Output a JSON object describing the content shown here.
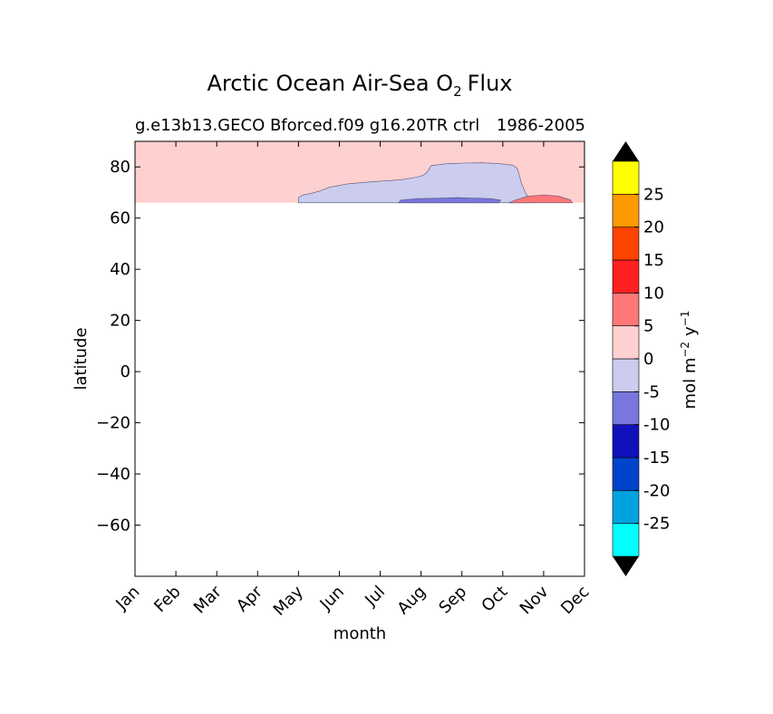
{
  "chart_data": {
    "type": "heatmap",
    "plot_kind": "filled contour",
    "title_main": "Arctic Ocean Air-Sea O",
    "title_sub": "2",
    "title_end": "Flux",
    "subtitle_left": "g.e13b13.GECO Bforced.f09 g16.20TR ctrl",
    "subtitle_right": "1986-2005",
    "xlabel": "month",
    "ylabel": "latitude",
    "x_categories": [
      "Jan",
      "Feb",
      "Mar",
      "Apr",
      "May",
      "Jun",
      "Jul",
      "Aug",
      "Sep",
      "Oct",
      "Nov",
      "Dec"
    ],
    "ylim": [
      -80,
      90
    ],
    "yticks": [
      {
        "value": 80,
        "label": "80"
      },
      {
        "value": 60,
        "label": "60"
      },
      {
        "value": 40,
        "label": "40"
      },
      {
        "value": 20,
        "label": "20"
      },
      {
        "value": 0,
        "label": "0"
      },
      {
        "value": -20,
        "label": "−20"
      },
      {
        "value": -40,
        "label": "−40"
      },
      {
        "value": -60,
        "label": "−60"
      }
    ],
    "data_lat_range": [
      66,
      90
    ],
    "background_level_color": "#ffd0d0",
    "regions": [
      {
        "level": "-5 to 0",
        "color": "#ccccee",
        "outline": [
          [
            4.0,
            66
          ],
          [
            4.0,
            68
          ],
          [
            4.1,
            69
          ],
          [
            4.3,
            69.6
          ],
          [
            4.5,
            70.5
          ],
          [
            4.75,
            72
          ],
          [
            5.2,
            73.4
          ],
          [
            5.8,
            74.2
          ],
          [
            6.5,
            75
          ],
          [
            6.9,
            76
          ],
          [
            7.05,
            76.7
          ],
          [
            7.15,
            78
          ],
          [
            7.25,
            80.5
          ],
          [
            7.6,
            81.2
          ],
          [
            8.0,
            81.5
          ],
          [
            8.5,
            81.6
          ],
          [
            8.9,
            81.3
          ],
          [
            9.25,
            80.7
          ],
          [
            9.35,
            79.5
          ],
          [
            9.4,
            77
          ],
          [
            9.45,
            74
          ],
          [
            9.55,
            70
          ],
          [
            9.65,
            67.5
          ],
          [
            9.75,
            66
          ]
        ]
      },
      {
        "level": "-10 to -5",
        "color": "#7777dd",
        "outline": [
          [
            6.45,
            66
          ],
          [
            6.5,
            67
          ],
          [
            6.9,
            67.6
          ],
          [
            7.5,
            67.8
          ],
          [
            7.9,
            68
          ],
          [
            8.3,
            67.8
          ],
          [
            8.7,
            67.6
          ],
          [
            8.95,
            67
          ],
          [
            8.9,
            66
          ]
        ]
      },
      {
        "level": "5 to 10",
        "color": "#ff7777",
        "outline": [
          [
            9.15,
            66
          ],
          [
            9.3,
            67
          ],
          [
            9.6,
            68.5
          ],
          [
            10.0,
            69.1
          ],
          [
            10.35,
            68.6
          ],
          [
            10.65,
            67.2
          ],
          [
            10.7,
            66
          ]
        ]
      }
    ],
    "colorbar": {
      "label_main": "mol m",
      "label_exp1": "−2",
      "label_mid": "y",
      "label_exp2": "−1",
      "levels": [
        -30,
        -25,
        -20,
        -15,
        -10,
        -5,
        0,
        5,
        10,
        15,
        20,
        25,
        30
      ],
      "colors": [
        "#00ffff",
        "#00a2e0",
        "#0044cc",
        "#1111bb",
        "#7777dd",
        "#ccccee",
        "#ffd0d0",
        "#ff7777",
        "#ff2020",
        "#ff4400",
        "#ff9900",
        "#ffff00"
      ],
      "tick_labels": [
        "-25",
        "-20",
        "-15",
        "-10",
        "-5",
        "0",
        "5",
        "10",
        "15",
        "20",
        "25"
      ],
      "extend_low_color": "#000000",
      "extend_high_color": "#000000"
    },
    "grid": false
  }
}
